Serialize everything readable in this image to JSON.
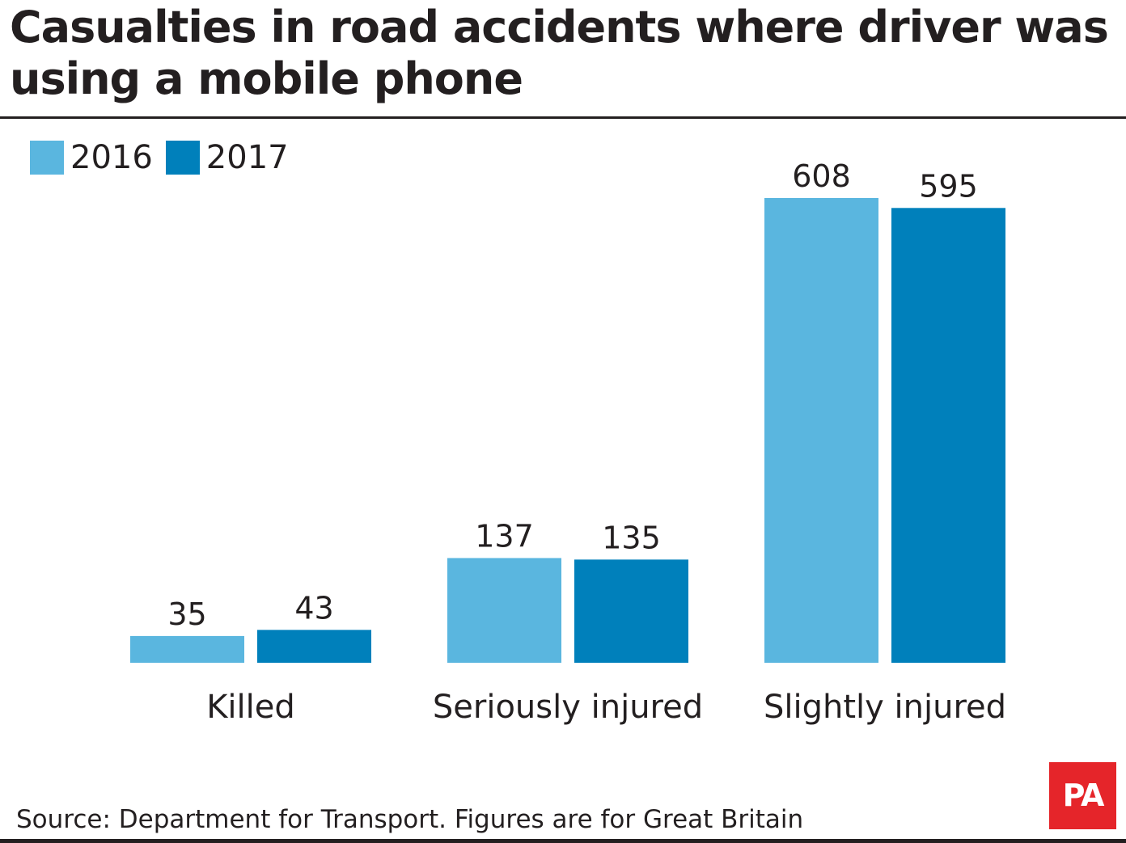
{
  "chart_data": {
    "type": "bar",
    "title": "Casualties in road accidents where driver was using a mobile phone",
    "categories": [
      "Killed",
      "Seriously injured",
      "Slightly injured"
    ],
    "series": [
      {
        "name": "2016",
        "values": [
          35,
          137,
          608
        ],
        "color": "#5ab6df"
      },
      {
        "name": "2017",
        "values": [
          43,
          135,
          595
        ],
        "color": "#0080bb"
      }
    ],
    "xlabel": "",
    "ylabel": "",
    "ylim": [
      0,
      610
    ],
    "grid": false,
    "legend": "top-left",
    "data_labels": true
  },
  "footer": {
    "source": "Source: Department for Transport. Figures are for Great Britain",
    "logo_text": "PA"
  }
}
